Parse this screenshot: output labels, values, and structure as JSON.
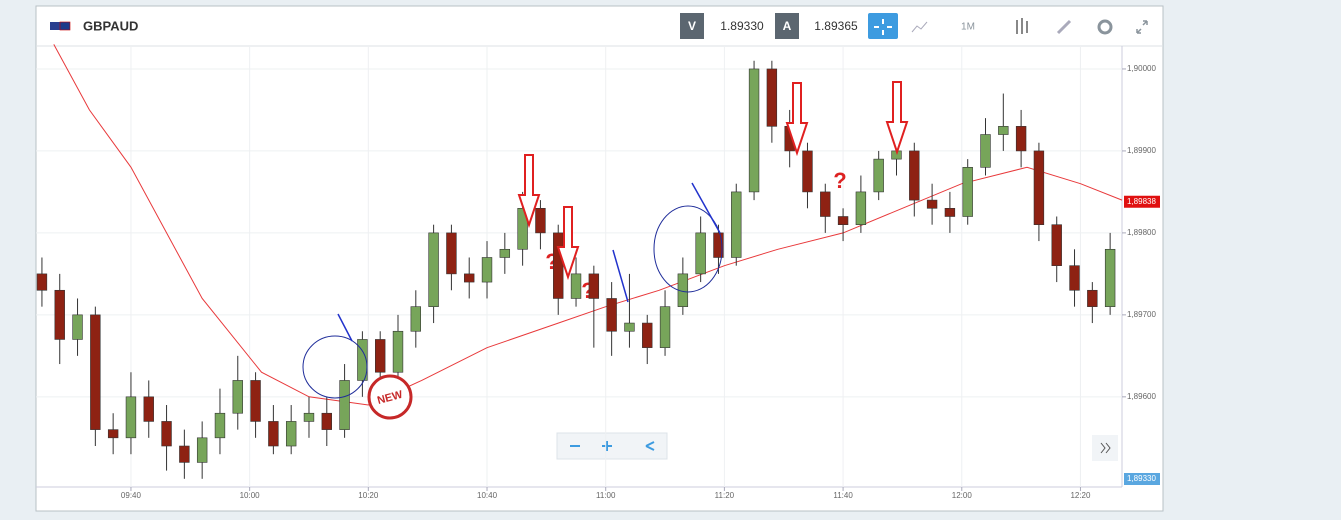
{
  "header": {
    "symbol": "GBPAUD",
    "bid_tag": "V",
    "bid": "1.89330",
    "ask_tag": "A",
    "ask": "1.89365",
    "interval": "1M"
  },
  "chart_data": {
    "type": "candlestick",
    "x": [
      "09:25",
      "09:28",
      "09:31",
      "09:34",
      "09:37",
      "09:40",
      "09:43",
      "09:46",
      "09:49",
      "09:52",
      "09:55",
      "09:58",
      "10:01",
      "10:04",
      "10:07",
      "10:10",
      "10:13",
      "10:16",
      "10:19",
      "10:22",
      "10:25",
      "10:28",
      "10:31",
      "10:34",
      "10:37",
      "10:40",
      "10:43",
      "10:46",
      "10:49",
      "10:52",
      "10:55",
      "10:58",
      "11:01",
      "11:04",
      "11:07",
      "11:10",
      "11:13",
      "11:16",
      "11:19",
      "11:22",
      "11:25",
      "11:28",
      "11:31",
      "11:34",
      "11:37",
      "11:40",
      "11:43",
      "11:46",
      "11:49",
      "11:52",
      "11:55",
      "11:58",
      "12:01",
      "12:04",
      "12:07",
      "12:10",
      "12:13",
      "12:16",
      "12:19",
      "12:22",
      "12:25"
    ],
    "open": [
      1.8975,
      1.8973,
      1.8967,
      1.897,
      1.8956,
      1.8955,
      1.896,
      1.8957,
      1.8954,
      1.8952,
      1.8955,
      1.8958,
      1.8962,
      1.8957,
      1.8954,
      1.8957,
      1.8958,
      1.8956,
      1.8962,
      1.8967,
      1.8963,
      1.8968,
      1.8971,
      1.898,
      1.8975,
      1.8974,
      1.8977,
      1.8978,
      1.8983,
      1.898,
      1.8972,
      1.8975,
      1.8972,
      1.8968,
      1.8969,
      1.8966,
      1.8971,
      1.8975,
      1.898,
      1.8977,
      1.8985,
      1.9,
      1.8993,
      1.899,
      1.8985,
      1.8982,
      1.8981,
      1.8985,
      1.8989,
      1.899,
      1.8984,
      1.8983,
      1.8982,
      1.8988,
      1.8992,
      1.8993,
      1.899,
      1.8981,
      1.8976,
      1.8973,
      1.8971
    ],
    "high": [
      1.8977,
      1.8975,
      1.8972,
      1.8971,
      1.8958,
      1.8963,
      1.8962,
      1.8959,
      1.8956,
      1.8957,
      1.8961,
      1.8965,
      1.8963,
      1.8959,
      1.8959,
      1.896,
      1.896,
      1.8964,
      1.8968,
      1.8968,
      1.897,
      1.8973,
      1.8981,
      1.8981,
      1.8977,
      1.8979,
      1.898,
      1.8985,
      1.8984,
      1.8981,
      1.8977,
      1.8976,
      1.8974,
      1.8975,
      1.897,
      1.8973,
      1.8977,
      1.8982,
      1.8981,
      1.8986,
      1.9001,
      1.9001,
      1.8995,
      1.8991,
      1.8986,
      1.8983,
      1.8987,
      1.899,
      1.8991,
      1.8991,
      1.8986,
      1.8985,
      1.8989,
      1.8994,
      1.8997,
      1.8995,
      1.8991,
      1.8982,
      1.8978,
      1.8974,
      1.898
    ],
    "low": [
      1.8971,
      1.8964,
      1.8965,
      1.8954,
      1.8953,
      1.8953,
      1.8955,
      1.8951,
      1.895,
      1.895,
      1.8953,
      1.8956,
      1.8955,
      1.8953,
      1.8953,
      1.8955,
      1.8954,
      1.8955,
      1.896,
      1.8961,
      1.8962,
      1.8966,
      1.8969,
      1.8973,
      1.8972,
      1.8972,
      1.8975,
      1.8976,
      1.8978,
      1.897,
      1.8971,
      1.8966,
      1.8965,
      1.8966,
      1.8964,
      1.8965,
      1.897,
      1.8974,
      1.8975,
      1.8976,
      1.8984,
      1.8991,
      1.8988,
      1.8983,
      1.898,
      1.8979,
      1.898,
      1.8984,
      1.8987,
      1.8982,
      1.8981,
      1.898,
      1.8981,
      1.8987,
      1.899,
      1.8988,
      1.8979,
      1.8974,
      1.8971,
      1.8969,
      1.897
    ],
    "close": [
      1.8973,
      1.8967,
      1.897,
      1.8956,
      1.8955,
      1.896,
      1.8957,
      1.8954,
      1.8952,
      1.8955,
      1.8958,
      1.8962,
      1.8957,
      1.8954,
      1.8957,
      1.8958,
      1.8956,
      1.8962,
      1.8967,
      1.8963,
      1.8968,
      1.8971,
      1.898,
      1.8975,
      1.8974,
      1.8977,
      1.8978,
      1.8983,
      1.898,
      1.8972,
      1.8975,
      1.8972,
      1.8968,
      1.8969,
      1.8966,
      1.8971,
      1.8975,
      1.898,
      1.8977,
      1.8985,
      1.9,
      1.8993,
      1.899,
      1.8985,
      1.8982,
      1.8981,
      1.8985,
      1.8989,
      1.899,
      1.8984,
      1.8983,
      1.8982,
      1.8988,
      1.8992,
      1.8993,
      1.899,
      1.8981,
      1.8976,
      1.8973,
      1.8971,
      1.8978
    ],
    "up_color": "#77a55a",
    "down_color": "#8e2213",
    "moving_average": {
      "color": "#e8393b",
      "x": [
        "09:27",
        "09:33",
        "09:40",
        "09:52",
        "10:02",
        "10:10",
        "10:20",
        "10:29",
        "10:40",
        "10:52",
        "11:00",
        "11:09",
        "11:20",
        "11:29",
        "11:40",
        "11:50",
        "12:00",
        "12:11",
        "12:20",
        "12:27"
      ],
      "values": [
        1.9003,
        1.8995,
        1.8988,
        1.8972,
        1.8963,
        1.896,
        1.8959,
        1.8962,
        1.8966,
        1.8969,
        1.8971,
        1.8973,
        1.8976,
        1.8978,
        1.898,
        1.8983,
        1.8986,
        1.8988,
        1.8986,
        1.8984
      ]
    },
    "ma_marker": {
      "value": 1.89838,
      "label": "1,89838"
    },
    "price_marker": "1,89330",
    "xlim": [
      "09:24",
      "12:27"
    ],
    "xticks": [
      "09:40",
      "10:00",
      "10:20",
      "10:40",
      "11:00",
      "11:20",
      "11:40",
      "12:00",
      "12:20"
    ],
    "ylim": [
      1.8949,
      1.90028
    ],
    "yticks": [
      {
        "value": 1.9,
        "label": "1,90000"
      },
      {
        "value": 1.899,
        "label": "1,89900"
      },
      {
        "value": 1.898,
        "label": "1,89800"
      },
      {
        "value": 1.897,
        "label": "1,89700"
      },
      {
        "value": 1.896,
        "label": "1,89600"
      }
    ],
    "grid": true,
    "annotations": [
      "?",
      "?",
      "?",
      "NEW"
    ]
  }
}
